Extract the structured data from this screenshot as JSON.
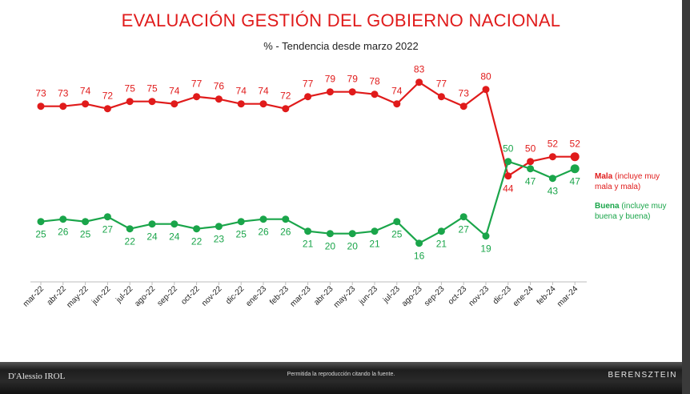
{
  "chart_data": {
    "type": "line",
    "title": "EVALUACIÓN GESTIÓN DEL GOBIERNO NACIONAL",
    "subtitle": "% - Tendencia desde marzo 2022",
    "categories": [
      "mar-22",
      "abr-22",
      "may-22",
      "jun-22",
      "jul-22",
      "ago-22",
      "sep-22",
      "oct-22",
      "nov-22",
      "dic-22",
      "ene-23",
      "feb-23",
      "mar-23",
      "abr-23",
      "may-23",
      "jun-23",
      "jul-23",
      "ago-23",
      "sep-23",
      "oct-23",
      "nov-23",
      "dic-23",
      "ene-24",
      "feb-24",
      "mar-24"
    ],
    "series": [
      {
        "name": "Mala",
        "legend_bold": "Mala",
        "legend_rest": "(incluye muy mala y mala)",
        "color": "#e01b1b",
        "values": [
          73,
          73,
          74,
          72,
          75,
          75,
          74,
          77,
          76,
          74,
          74,
          72,
          77,
          79,
          79,
          78,
          74,
          83,
          77,
          73,
          80,
          44,
          50,
          52,
          52
        ]
      },
      {
        "name": "Buena",
        "legend_bold": "Buena",
        "legend_rest": "(incluye muy buena y buena)",
        "color": "#1aa54a",
        "values": [
          25,
          26,
          25,
          27,
          22,
          24,
          24,
          22,
          23,
          25,
          26,
          26,
          21,
          20,
          20,
          21,
          25,
          16,
          21,
          27,
          19,
          50,
          47,
          43,
          47
        ]
      }
    ],
    "grid": false
  },
  "footer": {
    "left": "D'Alessio IROL",
    "center": "Permitida la reproducción citando la fuente.",
    "right": "BERENSZTEIN"
  }
}
